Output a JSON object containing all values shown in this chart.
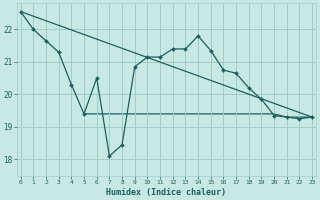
{
  "xlabel": "Humidex (Indice chaleur)",
  "bg_color": "#c8e8e4",
  "grid_color": "#a0ccc8",
  "line_color": "#1a6060",
  "x_ticks": [
    0,
    1,
    2,
    3,
    4,
    5,
    6,
    7,
    8,
    9,
    10,
    11,
    12,
    13,
    14,
    15,
    16,
    17,
    18,
    19,
    20,
    21,
    22,
    23
  ],
  "y_ticks": [
    18,
    19,
    20,
    21,
    22
  ],
  "ylim": [
    17.5,
    22.8
  ],
  "xlim": [
    -0.3,
    23.3
  ],
  "line1_x": [
    0,
    1,
    2,
    3,
    4,
    5,
    6,
    7,
    8,
    9,
    10,
    11,
    12,
    13,
    14,
    15,
    16,
    17,
    18,
    19,
    20,
    21,
    22,
    23
  ],
  "line1_y": [
    22.55,
    22.0,
    21.65,
    21.3,
    20.3,
    19.4,
    20.5,
    18.1,
    18.45,
    20.85,
    21.15,
    21.15,
    21.4,
    21.4,
    21.8,
    21.35,
    20.75,
    20.65,
    20.2,
    19.85,
    19.35,
    19.3,
    19.25,
    19.3
  ],
  "line2_x": [
    0,
    23
  ],
  "line2_y": [
    22.55,
    19.3
  ],
  "line3_x": [
    5,
    20,
    21,
    22,
    23
  ],
  "line3_y": [
    19.4,
    19.4,
    19.3,
    19.3,
    19.3
  ]
}
